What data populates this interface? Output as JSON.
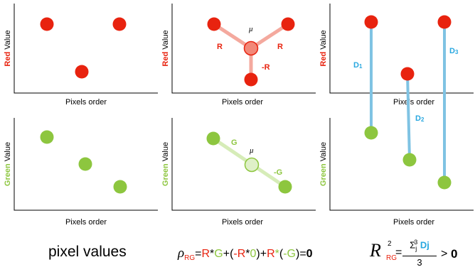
{
  "axes": {
    "xlabel": "Pixels order",
    "red_word": "Red",
    "green_word": "Green",
    "value_word": " Value"
  },
  "labels": {
    "mu": "μ",
    "R": "R",
    "minus_R": "-R",
    "G": "G",
    "minus_G": "-G",
    "D1_main": "D",
    "D1_sub": "1",
    "D2_main": "D",
    "D2_sub": "2",
    "D3_main": "D",
    "D3_sub": "3"
  },
  "formula1": {
    "text": "pixel values"
  },
  "formula2": {
    "rho": "ρ",
    "sub": "RG",
    "eq": "=",
    "R1": "R",
    "times1": "*",
    "G1": "G",
    "plus1": "+(",
    "minusR": "-R",
    "times2": "*",
    "zero_in": "0",
    "close1": ")+",
    "R2": "R",
    "times3": "*",
    "open2": "(",
    "minusG": "-G",
    "close2": ")=",
    "result": "0"
  },
  "formula3": {
    "calR": "R",
    "sup": "2",
    "sub": "RG",
    "eq": "=",
    "sum": "Σ",
    "sum_sub": "j",
    "sum_sup": "3",
    "Dj": "Dj",
    "den": "3",
    "gt": ">",
    "zero": "0"
  },
  "colors": {
    "red": "#e8230f",
    "red_light": "#f4a99e",
    "red_fill": "#f28878",
    "green": "#8dc63f",
    "green_light": "#d6ecb8",
    "green_fill": "#dff0c8",
    "blue": "#29a8e0",
    "blue_line": "#7fc3e3"
  }
}
